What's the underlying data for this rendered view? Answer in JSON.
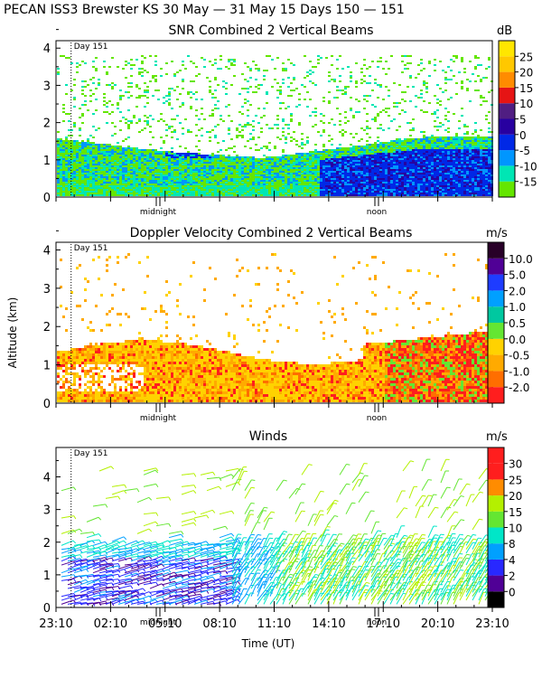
{
  "title": "PECAN ISS3 Brewster KS  30 May — 31 May 15 Days 150 — 151",
  "day_marker": "Day 151",
  "xlabel": "Time (UT)",
  "ylabel": "Altitude (km)",
  "time_labels": [
    "midnight",
    "noon"
  ],
  "wind_time_ticks": [
    "23:10",
    "02:10",
    "05:10",
    "08:10",
    "11:10",
    "14:10",
    "17:10",
    "20:10",
    "23:10"
  ],
  "chart_data": [
    {
      "type": "heatmap",
      "title": "SNR Combined 2 Vertical Beams",
      "ylim": [
        0,
        4.2
      ],
      "yticks": [
        "0",
        "1",
        "2",
        "3",
        "4"
      ],
      "colorbar_unit": "dB",
      "colorbar_labels": [
        "-15",
        "-10",
        "-5",
        "0",
        "5",
        "10",
        "15",
        "20",
        "25"
      ],
      "colors": [
        "#64e600",
        "#00e6b4",
        "#0096ff",
        "#0028e6",
        "#2800a0",
        "#501e82",
        "#e61414",
        "#ff8c00",
        "#ffc800",
        "#ffe600"
      ]
    },
    {
      "type": "heatmap",
      "title": "Doppler Velocity Combined 2 Vertical Beams",
      "ylim": [
        0,
        4.2
      ],
      "yticks": [
        "0",
        "1",
        "2",
        "3",
        "4"
      ],
      "colorbar_unit": "m/s",
      "colorbar_labels": [
        "-2.0",
        "-1.0",
        "-0.5",
        "0.0",
        "0.5",
        "1.0",
        "2.0",
        "5.0",
        "10.0"
      ],
      "colors": [
        "#ff1e1e",
        "#ff6e00",
        "#ffaa00",
        "#ffd200",
        "#64e632",
        "#00c8a0",
        "#00a0ff",
        "#1e3cff",
        "#500096",
        "#280028"
      ]
    },
    {
      "type": "scatter",
      "title": "Winds",
      "ylim": [
        0,
        4.9
      ],
      "yticks": [
        "0",
        "1",
        "2",
        "3",
        "4"
      ],
      "colorbar_unit": "m/s",
      "colorbar_labels": [
        "0",
        "2",
        "4",
        "8",
        "10",
        "15",
        "20",
        "25",
        "30"
      ],
      "colors": [
        "#000000",
        "#500096",
        "#2828ff",
        "#00a0ff",
        "#00e6c8",
        "#64e632",
        "#b4f000",
        "#ff8c00",
        "#ff1e1e",
        "#ff1e1e"
      ]
    }
  ]
}
